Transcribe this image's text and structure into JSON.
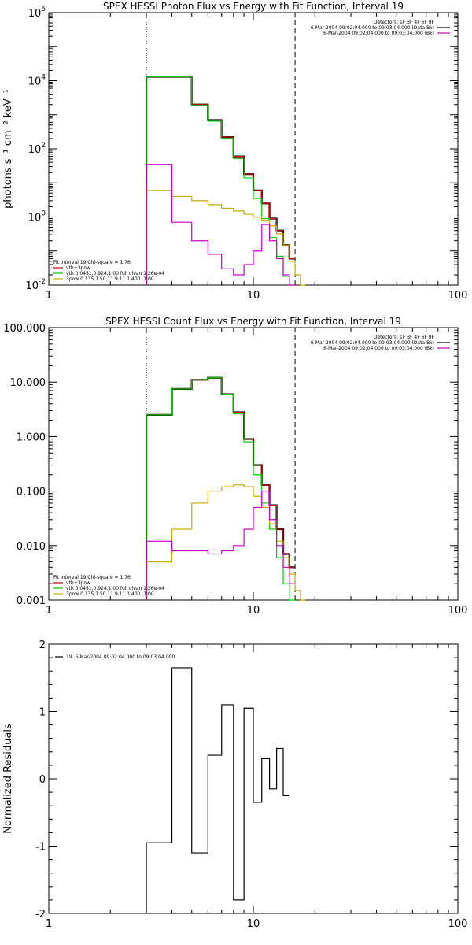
{
  "chart_data": [
    {
      "id": "photon",
      "type": "line",
      "title": "SPEX HESSI Photon Flux vs Energy with Fit Function, Interval 19",
      "xlabel": "",
      "ylabel": "photons s⁻¹ cm⁻² keV⁻¹",
      "xscale": "log",
      "yscale": "log",
      "xlim": [
        1,
        100
      ],
      "ylim": [
        0.01,
        1000000
      ],
      "x_ticks": [
        1,
        10,
        100
      ],
      "x_tick_labels": [
        "1",
        "10",
        "100"
      ],
      "y_ticks": [
        0.01,
        1,
        100,
        10000,
        1000000
      ],
      "y_tick_labels": [
        {
          "base": "10",
          "exp": "-2"
        },
        {
          "base": "10",
          "exp": "0"
        },
        {
          "base": "10",
          "exp": "2"
        },
        {
          "base": "10",
          "exp": "4"
        },
        {
          "base": "10",
          "exp": "6"
        }
      ],
      "vlines": [
        {
          "x": 3.0,
          "style": "dotted"
        },
        {
          "x": 16.0,
          "style": "dashed"
        }
      ],
      "legend_top": [
        {
          "text": "Detectors: 1F 3F 4F 6F 9F",
          "color": null
        },
        {
          "text": "6-Mar-2004 09:02:04.000 to 09:03:04.000 (Data-Bk)",
          "color": "#000000"
        },
        {
          "text": "6-Mar-2004 09:02:04.000 to 09:03:04.000 (Bk)",
          "color": "#cc00cc"
        }
      ],
      "legend_bottom": [
        {
          "text": "Fit Interval 19   Chi-square = 1.76",
          "color": null
        },
        {
          "text": "vth+3pow",
          "color": "#cc0000"
        },
        {
          "text": "vth 0.0451,0.924,1.00  full chian 1.26e-04",
          "color": "#00cc00"
        },
        {
          "text": "3pow 0.135,1.50,11.9,11.1,400.,1.00",
          "color": "#ccaa00"
        }
      ],
      "edges": [
        3.0,
        4.0,
        5.0,
        6.0,
        7.0,
        8.0,
        9.0,
        10.0,
        11.0,
        12.0,
        13.0,
        14.0,
        15.0,
        16.0,
        17.0,
        18.0
      ],
      "series": [
        {
          "key": "data",
          "color": "#000000",
          "width": 2.2,
          "values": [
            13000,
            13000,
            2000,
            700,
            220,
            60,
            18,
            6,
            2.5,
            0.9,
            0.4,
            0.15,
            0.06,
            null,
            null
          ]
        },
        {
          "key": "fit",
          "color": "#cc0000",
          "width": 1.2,
          "values": [
            13000,
            13000,
            2000,
            700,
            220,
            60,
            18,
            6,
            2.5,
            0.9,
            0.4,
            0.15,
            0.06,
            null,
            null
          ]
        },
        {
          "key": "vth",
          "color": "#00cc00",
          "width": 1.2,
          "values": [
            13000,
            13000,
            1900,
            650,
            200,
            52,
            14,
            3.5,
            0.9,
            0.25,
            0.07,
            0.018,
            0.01,
            null,
            null
          ]
        },
        {
          "key": "pow",
          "color": "#ccaa00",
          "width": 1.2,
          "values": [
            6,
            4,
            3,
            2.3,
            1.8,
            1.5,
            1.2,
            1.0,
            0.8,
            0.55,
            0.32,
            0.15,
            0.05,
            0.02,
            0.01
          ]
        },
        {
          "key": "bkg",
          "color": "#cc00cc",
          "width": 1.2,
          "values": [
            35,
            0.7,
            0.2,
            0.08,
            0.03,
            0.02,
            0.04,
            0.1,
            0.6,
            0.2,
            0.06,
            0.02,
            0.01,
            null,
            null
          ]
        }
      ]
    },
    {
      "id": "count",
      "type": "line",
      "title": "SPEX HESSI Count Flux vs Energy with Fit Function, Interval 19",
      "xlabel": "",
      "ylabel": "",
      "xscale": "log",
      "yscale": "log",
      "xlim": [
        1,
        100
      ],
      "ylim": [
        0.001,
        100
      ],
      "x_ticks": [
        1,
        10,
        100
      ],
      "x_tick_labels": [
        "1",
        "10",
        "100"
      ],
      "y_ticks": [
        0.001,
        0.01,
        0.1,
        1,
        10,
        100
      ],
      "y_tick_labels": [
        "0.001",
        "0.010",
        "0.100",
        "1.000",
        "10.000",
        "100.000"
      ],
      "vlines": [
        {
          "x": 3.0,
          "style": "dotted"
        },
        {
          "x": 16.0,
          "style": "dashed"
        }
      ],
      "legend_top": [
        {
          "text": "Detectors: 1F 3F 4F 6F 9F",
          "color": null
        },
        {
          "text": "6-Mar-2004 09:02:04.000 to 09:03:04.000 (Data-Bk)",
          "color": "#000000"
        },
        {
          "text": "6-Mar-2004 09:02:04.000 to 09:03:04.000 (Bk)",
          "color": "#cc00cc"
        }
      ],
      "legend_bottom": [
        {
          "text": "Fit Interval 19   Chi-square = 1.76",
          "color": null
        },
        {
          "text": "vth+3pow",
          "color": "#cc0000"
        },
        {
          "text": "vth 0.0451,0.924,1.00  full chian 1.26e-04",
          "color": "#00cc00"
        },
        {
          "text": "3pow 0.135,1.50,11.9,11.1,400.,1.00",
          "color": "#ccaa00"
        }
      ],
      "edges": [
        3.0,
        4.0,
        5.0,
        6.0,
        7.0,
        8.0,
        9.0,
        10.0,
        11.0,
        12.0,
        13.0,
        14.0,
        15.0,
        16.0,
        17.0,
        18.0
      ],
      "series": [
        {
          "key": "data",
          "color": "#000000",
          "width": 2.2,
          "values": [
            2.5,
            7.5,
            11,
            12,
            6,
            2.8,
            0.9,
            0.3,
            0.13,
            0.055,
            0.02,
            0.007,
            0.004,
            null,
            null
          ]
        },
        {
          "key": "fit",
          "color": "#cc0000",
          "width": 1.2,
          "values": [
            2.5,
            7.5,
            11,
            12,
            6,
            2.8,
            0.9,
            0.3,
            0.13,
            0.055,
            0.02,
            0.007,
            0.004,
            null,
            null
          ]
        },
        {
          "key": "vth",
          "color": "#00cc00",
          "width": 1.2,
          "values": [
            2.5,
            7.5,
            11,
            12,
            6,
            2.6,
            0.8,
            0.2,
            0.06,
            0.02,
            0.006,
            0.002,
            0.001,
            null,
            null
          ]
        },
        {
          "key": "pow",
          "color": "#ccaa00",
          "width": 1.2,
          "values": [
            0.005,
            0.02,
            0.06,
            0.1,
            0.12,
            0.13,
            0.12,
            0.08,
            0.05,
            0.025,
            0.012,
            0.006,
            0.003,
            0.0015,
            0.001
          ]
        },
        {
          "key": "bkg",
          "color": "#cc00cc",
          "width": 1.2,
          "values": [
            0.012,
            0.008,
            0.008,
            0.007,
            0.008,
            0.01,
            0.02,
            0.05,
            0.1,
            0.03,
            0.01,
            0.004,
            0.002,
            null,
            null
          ]
        }
      ]
    },
    {
      "id": "resid",
      "type": "line",
      "title": "",
      "xlabel": "",
      "ylabel": "Normalized Residuals",
      "xscale": "log",
      "yscale": "linear",
      "xlim": [
        1,
        100
      ],
      "ylim": [
        -2,
        2
      ],
      "x_ticks": [
        1,
        10,
        100
      ],
      "x_tick_labels": [
        "1",
        "10",
        "100"
      ],
      "y_ticks": [
        -2,
        -1,
        0,
        1,
        2
      ],
      "y_tick_labels": [
        "-2",
        "-1",
        "0",
        "1",
        "2"
      ],
      "vlines": [],
      "legend_top": [],
      "legend_bottom": [],
      "legend_left": [
        {
          "text": "19.  6-Mar-2004 09:02:04.000 to 09:03:04.000",
          "color": "#000000"
        }
      ],
      "edges": [
        3.0,
        4.0,
        5.0,
        6.0,
        7.0,
        8.0,
        9.0,
        10.0,
        11.0,
        12.0,
        13.0,
        14.0,
        15.0,
        16.0
      ],
      "series": [
        {
          "key": "residuals",
          "color": "#000000",
          "width": 1.2,
          "values": [
            -0.95,
            1.65,
            -1.1,
            0.35,
            1.1,
            -1.8,
            1.05,
            -0.35,
            0.3,
            -0.15,
            0.45,
            -0.25,
            null
          ]
        }
      ]
    }
  ]
}
